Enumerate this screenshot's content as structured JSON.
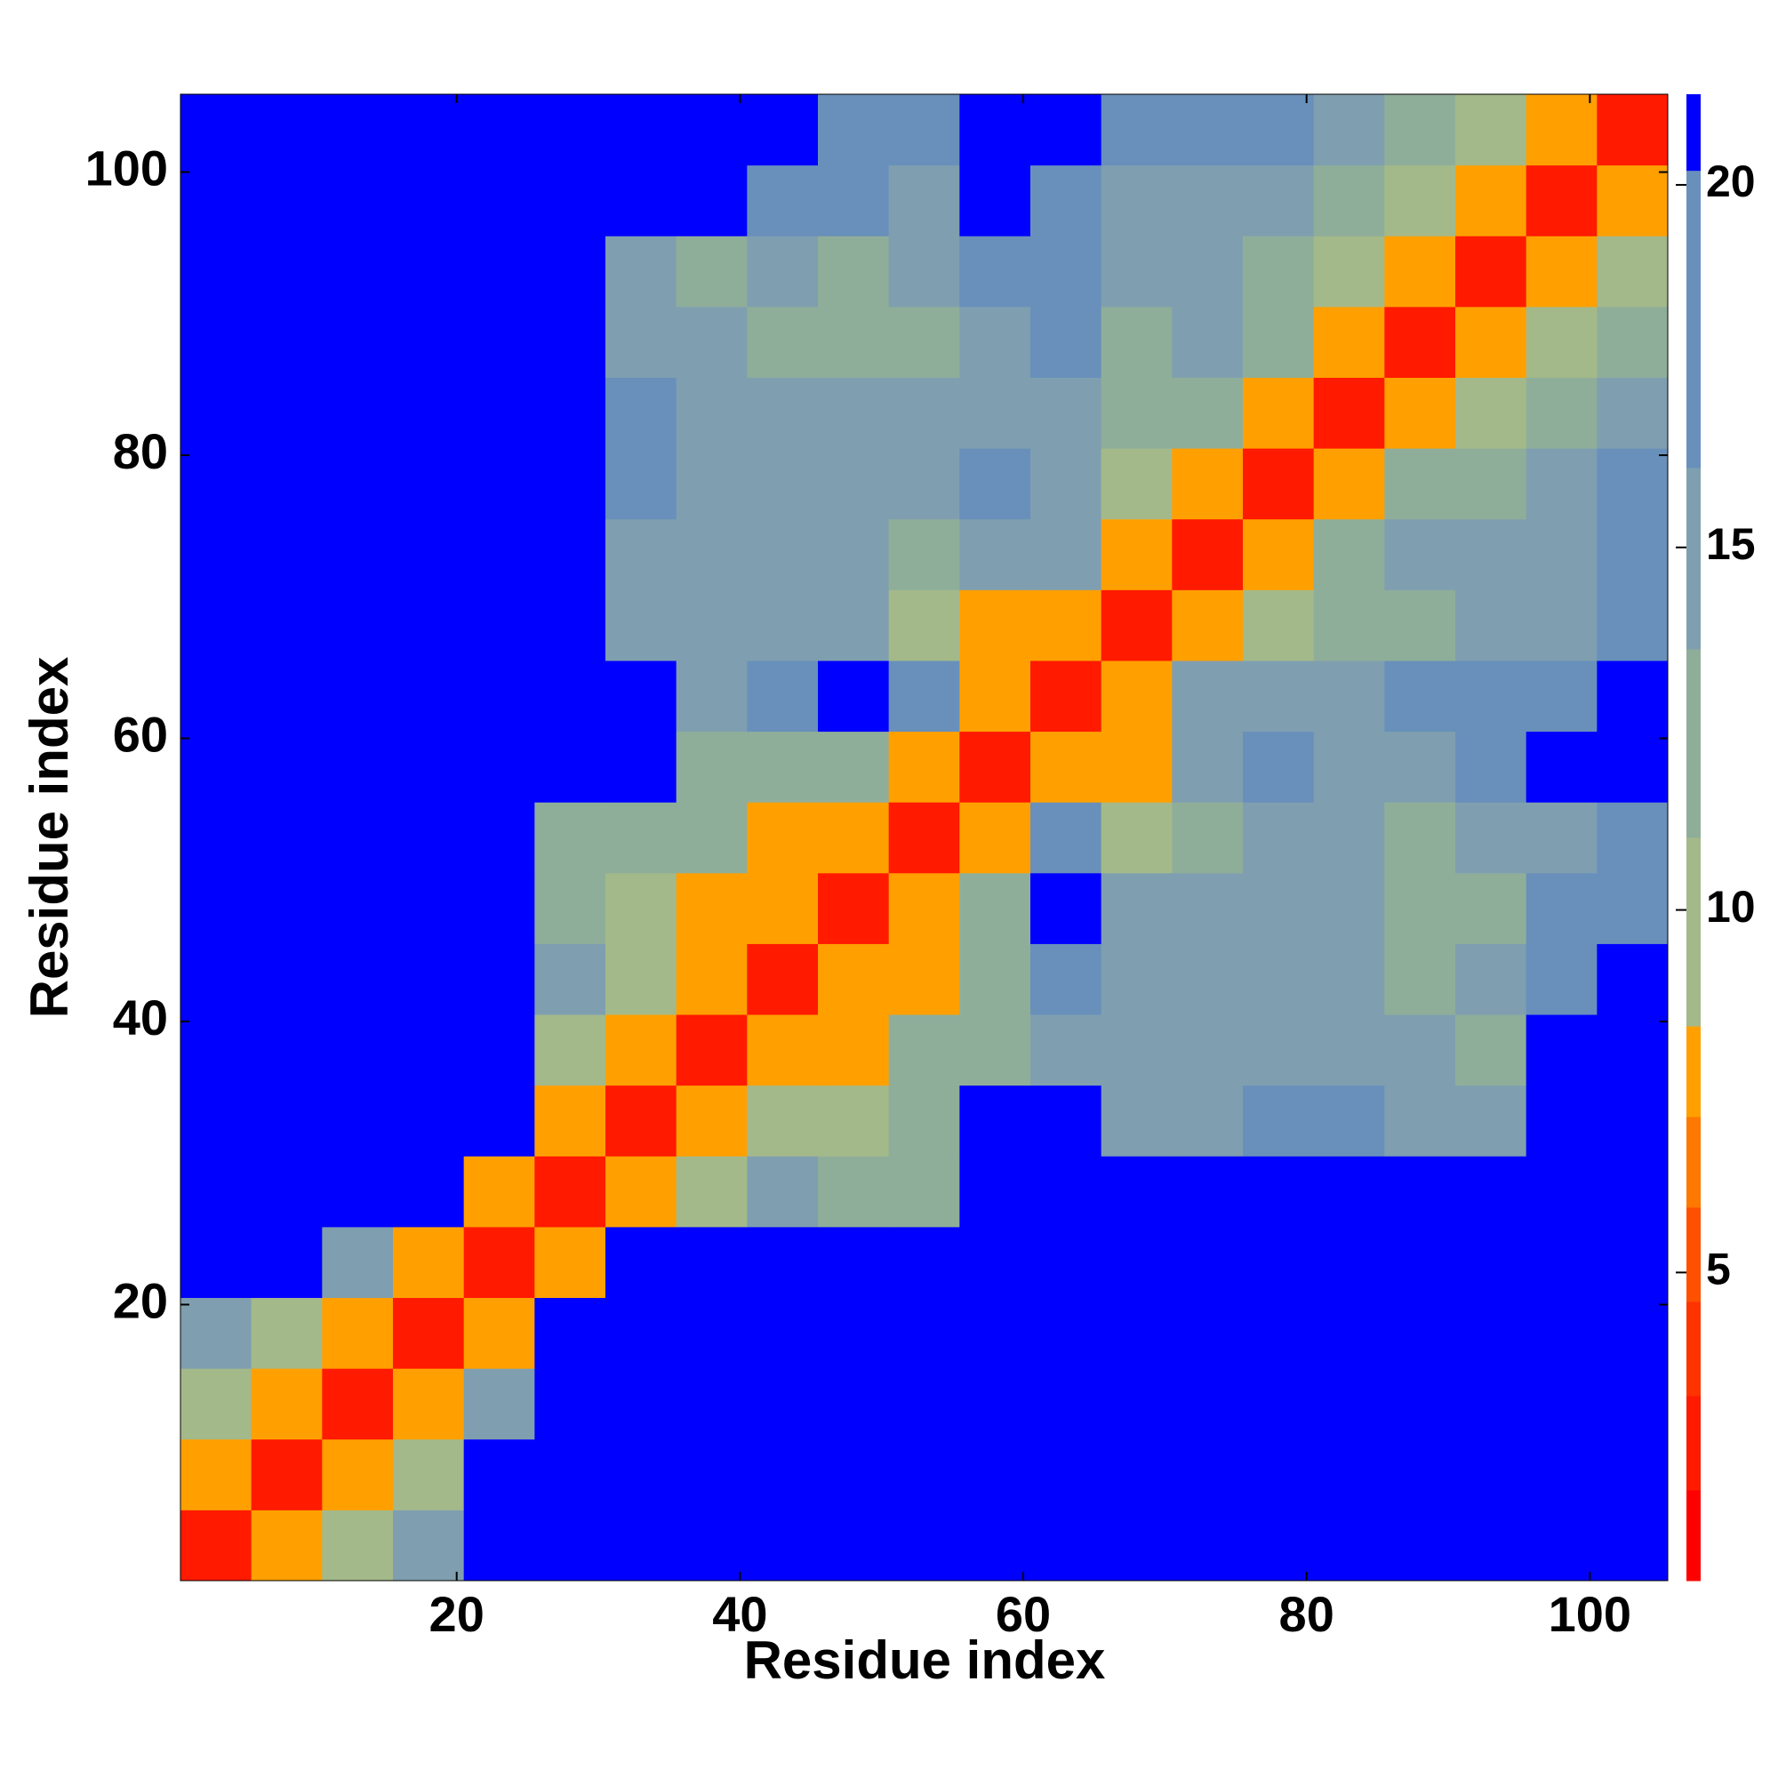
{
  "chart_data": {
    "type": "heatmap",
    "xlabel": "Residue index",
    "ylabel": "Residue index",
    "xbins": [
      0.5,
      5.5,
      10.5,
      15.5,
      20.5,
      25.5,
      30.5,
      35.5,
      40.5,
      45.5,
      50.5,
      55.5,
      60.5,
      65.5,
      70.5,
      75.5,
      80.5,
      85.5,
      90.5,
      95.5,
      100.5,
      105.5
    ],
    "ybins": [
      0.5,
      5.5,
      10.5,
      15.5,
      20.5,
      25.5,
      30.5,
      35.5,
      40.5,
      45.5,
      50.5,
      55.5,
      60.5,
      65.5,
      70.5,
      75.5,
      80.5,
      85.5,
      90.5,
      95.5,
      100.5,
      105.5
    ],
    "values": [
      [
        3,
        8,
        10,
        14,
        21,
        21,
        21,
        21,
        21,
        21,
        21,
        21,
        21,
        21,
        21,
        21,
        21,
        21,
        21,
        21,
        21
      ],
      [
        8,
        3,
        8,
        11,
        21,
        21,
        21,
        21,
        21,
        21,
        21,
        21,
        21,
        21,
        21,
        21,
        21,
        21,
        21,
        21,
        21
      ],
      [
        10,
        8,
        3,
        8,
        16,
        21,
        21,
        21,
        21,
        21,
        21,
        21,
        21,
        21,
        21,
        21,
        21,
        21,
        21,
        21,
        21
      ],
      [
        14,
        11,
        8,
        3,
        8,
        21,
        21,
        21,
        21,
        21,
        21,
        21,
        21,
        21,
        21,
        21,
        21,
        21,
        21,
        21,
        21
      ],
      [
        21,
        21,
        16,
        8,
        3,
        8,
        21,
        21,
        21,
        21,
        21,
        21,
        21,
        21,
        21,
        21,
        21,
        21,
        21,
        21,
        21
      ],
      [
        21,
        21,
        21,
        21,
        8,
        3,
        8,
        9,
        14,
        13,
        13,
        21,
        21,
        21,
        21,
        21,
        21,
        21,
        21,
        21,
        21
      ],
      [
        21,
        21,
        21,
        21,
        21,
        8,
        3,
        8,
        11,
        9,
        12,
        21,
        21,
        16,
        16,
        18,
        19,
        16,
        14,
        21,
        21
      ],
      [
        21,
        21,
        21,
        21,
        21,
        9,
        8,
        3,
        8,
        8,
        12,
        13,
        15,
        15,
        15,
        15,
        15,
        14,
        12,
        21,
        21
      ],
      [
        21,
        21,
        21,
        21,
        21,
        14,
        11,
        8,
        3,
        8,
        8,
        12,
        18,
        14,
        15,
        15,
        15,
        13,
        14,
        20,
        21
      ],
      [
        21,
        21,
        21,
        21,
        21,
        13,
        9,
        8,
        8,
        3,
        8,
        12,
        21,
        15,
        14,
        14,
        14,
        12,
        13,
        17,
        20
      ],
      [
        21,
        21,
        21,
        21,
        21,
        13,
        12,
        12,
        8,
        8,
        3,
        8,
        18,
        9,
        12,
        14,
        15,
        13,
        14,
        16,
        20
      ],
      [
        21,
        21,
        21,
        21,
        21,
        21,
        21,
        13,
        12,
        12,
        8,
        3,
        8,
        8,
        14,
        18,
        16,
        16,
        18,
        21,
        21
      ],
      [
        21,
        21,
        21,
        21,
        21,
        21,
        21,
        15,
        18,
        21,
        18,
        8,
        3,
        8,
        15,
        16,
        15,
        17,
        17,
        20,
        21
      ],
      [
        21,
        21,
        21,
        21,
        21,
        21,
        16,
        15,
        14,
        15,
        9,
        8,
        8,
        3,
        8,
        9,
        13,
        12,
        14,
        16,
        20
      ],
      [
        21,
        21,
        21,
        21,
        21,
        21,
        16,
        15,
        15,
        14,
        12,
        14,
        15,
        8,
        3,
        8,
        13,
        14,
        14,
        15,
        19
      ],
      [
        21,
        21,
        21,
        21,
        21,
        21,
        18,
        15,
        15,
        14,
        14,
        18,
        16,
        9,
        8,
        3,
        8,
        12,
        13,
        14,
        17
      ],
      [
        21,
        21,
        21,
        21,
        21,
        21,
        19,
        15,
        15,
        14,
        15,
        16,
        15,
        13,
        13,
        8,
        3,
        8,
        11,
        13,
        15
      ],
      [
        21,
        21,
        21,
        21,
        21,
        21,
        16,
        14,
        13,
        12,
        13,
        16,
        17,
        12,
        14,
        12,
        8,
        3,
        8,
        10,
        13
      ],
      [
        21,
        21,
        21,
        21,
        21,
        21,
        14,
        12,
        14,
        13,
        14,
        18,
        17,
        14,
        14,
        13,
        11,
        8,
        3,
        8,
        10
      ],
      [
        21,
        21,
        21,
        21,
        21,
        21,
        21,
        21,
        20,
        17,
        16,
        21,
        20,
        16,
        15,
        14,
        13,
        10,
        8,
        3,
        8
      ],
      [
        21,
        21,
        21,
        21,
        21,
        21,
        21,
        21,
        21,
        20,
        20,
        21,
        21,
        20,
        19,
        17,
        15,
        13,
        10,
        8,
        3
      ]
    ],
    "xlim": [
      0.5,
      105.5
    ],
    "ylim": [
      0.5,
      105.5
    ],
    "xticks": [
      20,
      40,
      60,
      80,
      100
    ],
    "yticks": [
      20,
      40,
      60,
      80,
      100
    ],
    "clim": [
      0.75,
      21.25
    ],
    "cticks": [
      5,
      10,
      15,
      20
    ],
    "levels": [
      0.75,
      2,
      3.3,
      4.6,
      5.9,
      7.15,
      8.4,
      11,
      13.6,
      16.1,
      20.2,
      21.25
    ],
    "level_colors": [
      "#ff0000",
      "#ff1a00",
      "#ff3300",
      "#ff5000",
      "#ff7800",
      "#ffa000",
      "#a4b98a",
      "#8fae9a",
      "#7f9fb0",
      "#6890bb",
      "#0000ff"
    ]
  }
}
